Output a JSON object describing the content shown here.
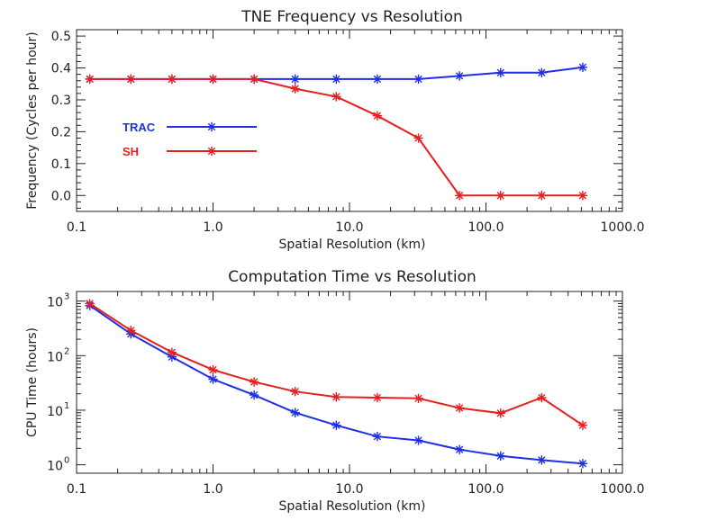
{
  "chart_data": [
    {
      "type": "line",
      "title": "TNE Frequency vs Resolution",
      "xlabel": "Spatial Resolution (km)",
      "ylabel": "Frequency (Cycles per hour)",
      "xscale": "log",
      "xlim": [
        0.1,
        1000
      ],
      "ylim": [
        -0.05,
        0.52
      ],
      "x_ticks": [
        "0.1",
        "1.0",
        "10.0",
        "100.0",
        "1000.0"
      ],
      "y_ticks": [
        "0.0",
        "0.1",
        "0.2",
        "0.3",
        "0.4",
        "0.5"
      ],
      "x": [
        0.125,
        0.25,
        0.5,
        1,
        2,
        4,
        8,
        16,
        32,
        64,
        128,
        256,
        512
      ],
      "series": [
        {
          "name": "TRAC",
          "color": "#1f2fe6",
          "values": [
            0.365,
            0.365,
            0.365,
            0.365,
            0.365,
            0.365,
            0.365,
            0.365,
            0.365,
            0.375,
            0.385,
            0.385,
            0.402
          ]
        },
        {
          "name": "SH",
          "color": "#e61f1f",
          "values": [
            0.365,
            0.365,
            0.365,
            0.365,
            0.365,
            0.335,
            0.31,
            0.25,
            0.18,
            0.0,
            0.0,
            0.0,
            0.0
          ]
        }
      ],
      "legend": "left, inside plot"
    },
    {
      "type": "line",
      "title": "Computation Time vs Resolution",
      "xlabel": "Spatial Resolution (km)",
      "ylabel": "CPU Time (hours)",
      "xscale": "log",
      "yscale": "log",
      "xlim": [
        0.1,
        1000
      ],
      "ylim": [
        0.7,
        1500
      ],
      "x_ticks": [
        "0.1",
        "1.0",
        "10.0",
        "100.0",
        "1000.0"
      ],
      "y_tick_base": "10",
      "y_tick_exponents": [
        "0",
        "1",
        "2",
        "3"
      ],
      "x": [
        0.125,
        0.25,
        0.5,
        1,
        2,
        4,
        8,
        16,
        32,
        64,
        128,
        256,
        512
      ],
      "series": [
        {
          "name": "TRAC",
          "color": "#1f2fe6",
          "values": [
            830,
            250,
            95,
            37,
            19,
            9,
            5.3,
            3.3,
            2.8,
            1.9,
            1.45,
            1.22,
            1.05
          ]
        },
        {
          "name": "SH",
          "color": "#e61f1f",
          "values": [
            900,
            290,
            115,
            55,
            33,
            22,
            17.5,
            17,
            16.5,
            11,
            8.8,
            17,
            5.3
          ]
        }
      ]
    }
  ]
}
